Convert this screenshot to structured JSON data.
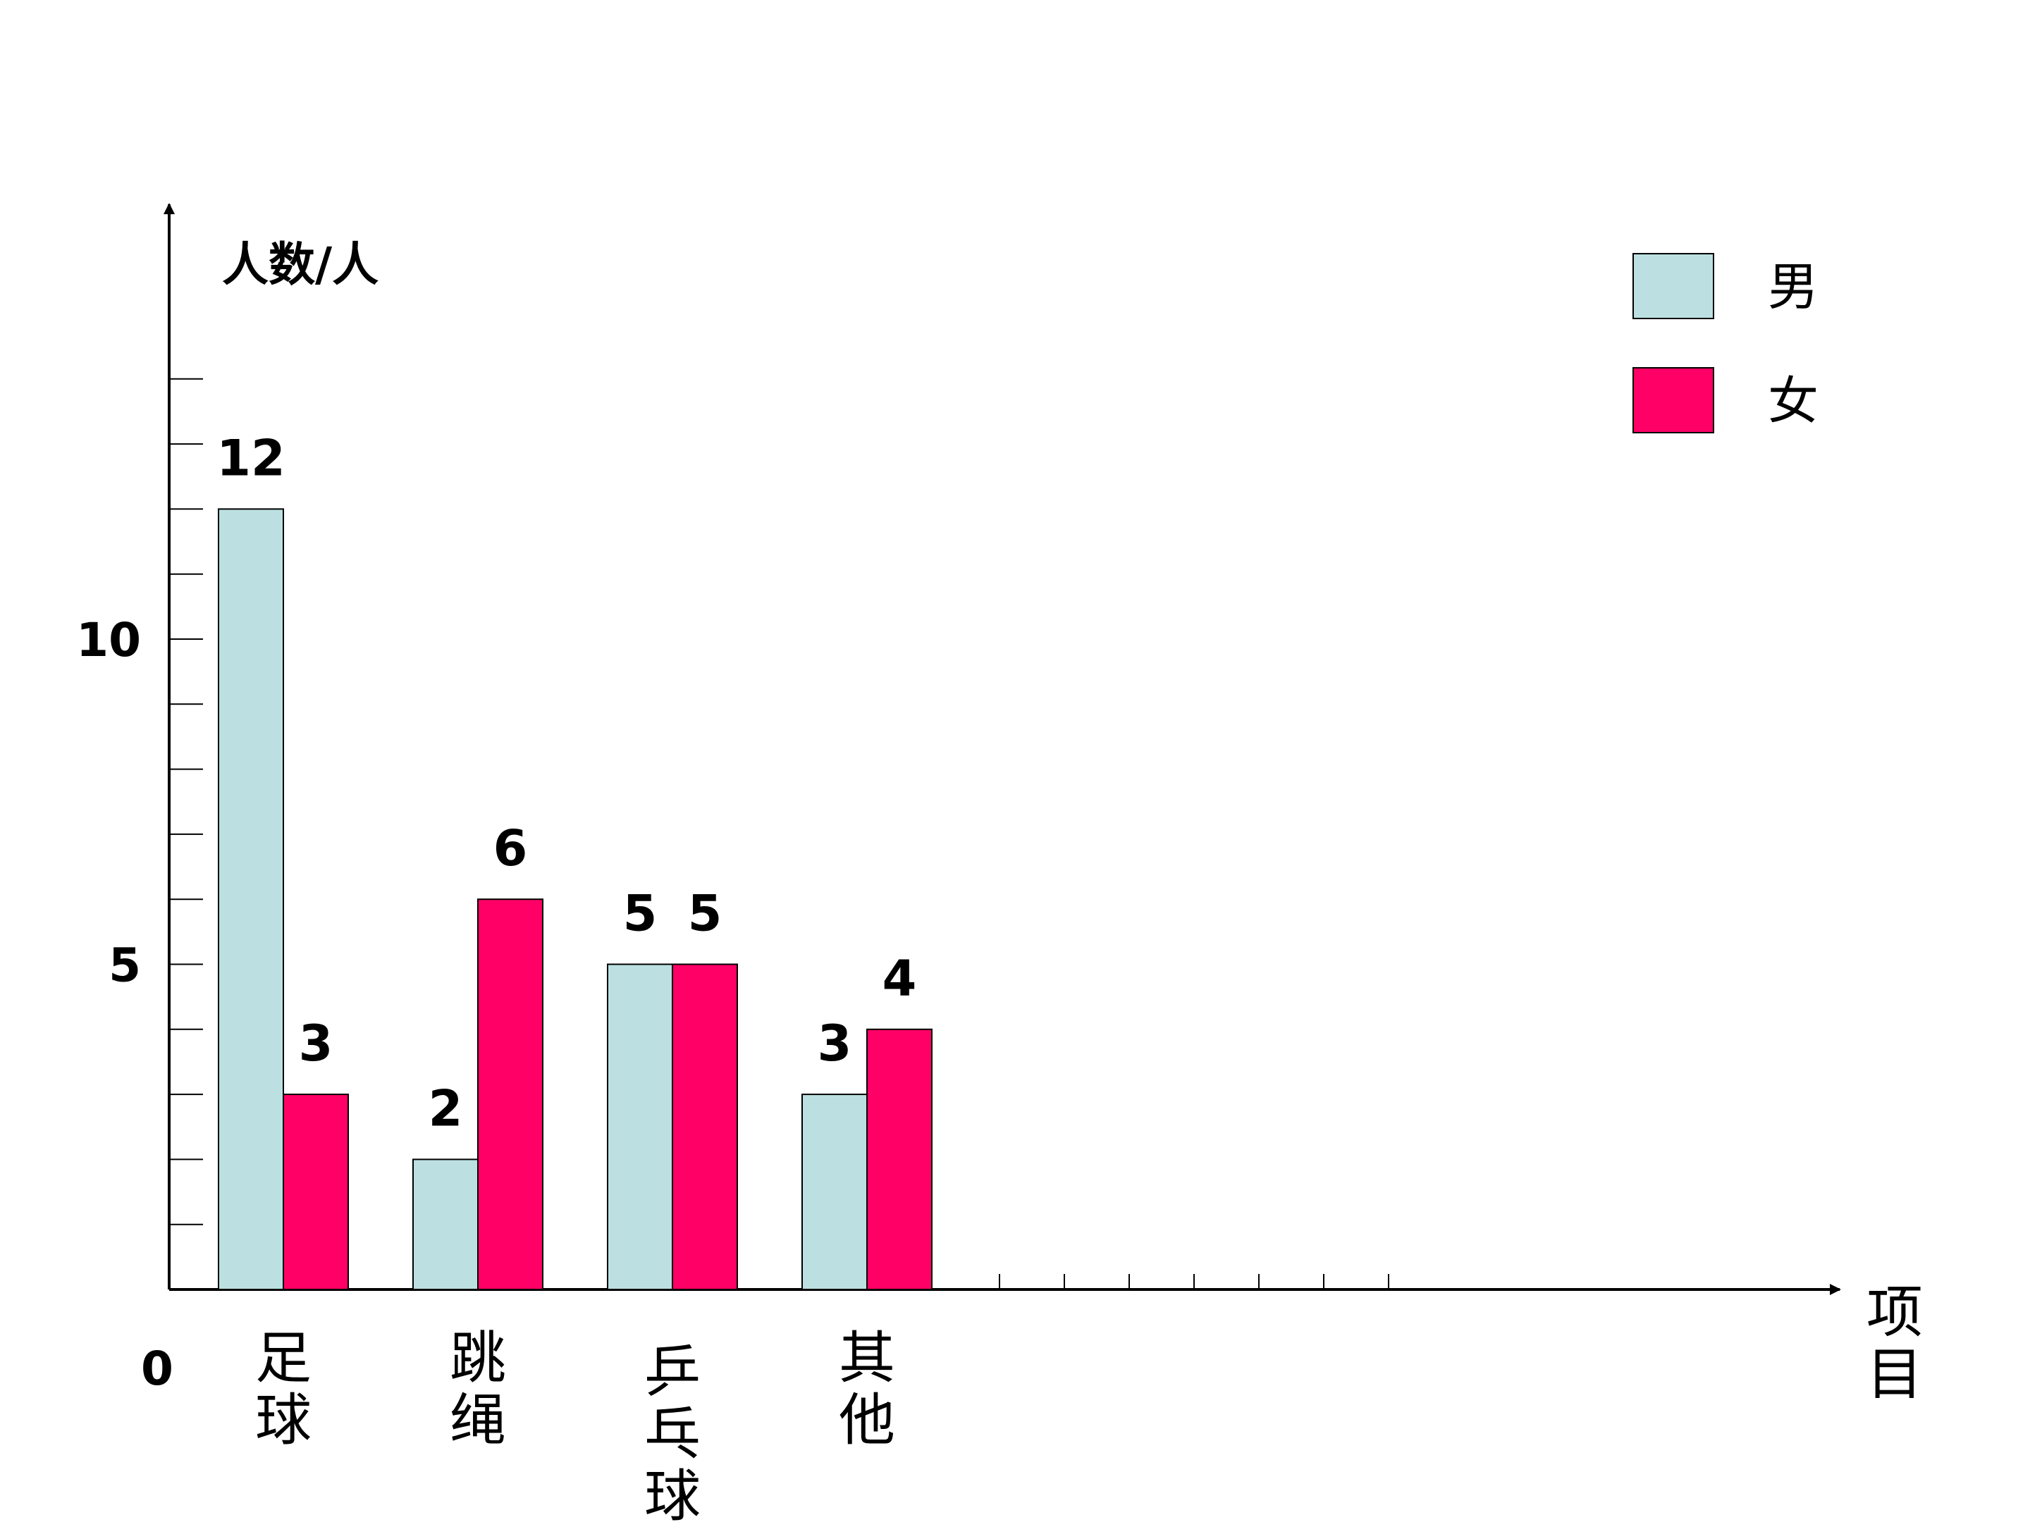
{
  "chart_data": {
    "type": "bar",
    "ylabel": "人数/人",
    "xlabel": "项目",
    "origin_label": "0",
    "categories": [
      "足球",
      "跳绳",
      "乒乓球",
      "其他"
    ],
    "series": [
      {
        "name": "男",
        "values": [
          12,
          2,
          5,
          3
        ],
        "color": "#BCE0E2"
      },
      {
        "name": "女",
        "values": [
          3,
          6,
          5,
          4
        ],
        "color": "#FF0066"
      }
    ],
    "data_labels": [
      [
        "12",
        "2",
        "5",
        "3"
      ],
      [
        "3",
        "6",
        "5",
        "4"
      ]
    ],
    "ytick_labels": [
      {
        "value": 5,
        "label": "5"
      },
      {
        "value": 10,
        "label": "10"
      }
    ],
    "ylim": [
      0,
      16
    ],
    "legend_position": "top-right",
    "grid": false
  }
}
